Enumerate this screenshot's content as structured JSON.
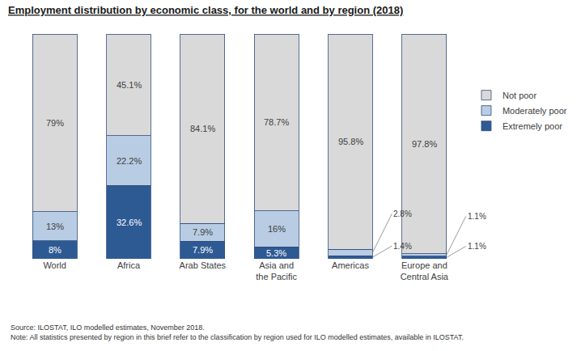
{
  "chart_data": {
    "type": "bar",
    "title": "Employment distribution by economic class, for the world and by region (2018)",
    "categories": [
      "World",
      "Africa",
      "Arab States",
      "Asia and the Pacific",
      "Americas",
      "Europe and Central Asia"
    ],
    "series": [
      {
        "name": "Extremely poor",
        "color": "#2e5a94",
        "values": [
          8,
          32.6,
          7.9,
          5.3,
          1.4,
          1.1
        ],
        "value_labels": [
          "8%",
          "32.6%",
          "7.9%",
          "5.3%",
          "1.4%",
          "1.1%"
        ]
      },
      {
        "name": "Moderately poor",
        "color": "#b8cce4",
        "values": [
          13,
          22.2,
          7.9,
          16,
          2.8,
          1.1
        ],
        "value_labels": [
          "13%",
          "22.2%",
          "7.9%",
          "16%",
          "2.8%",
          "1.1%"
        ]
      },
      {
        "name": "Not poor",
        "color": "#d9d9d9",
        "values": [
          79,
          45.1,
          84.1,
          78.7,
          95.8,
          97.8
        ],
        "value_labels": [
          "79%",
          "45.1%",
          "84.1%",
          "78.7%",
          "95.8%",
          "97.8%"
        ]
      }
    ],
    "stacked": true,
    "data_labels": true,
    "legend": "right",
    "tick_labels": "x",
    "grid": false,
    "ylim": [
      0,
      100
    ],
    "annotations": [
      "Source: ILOSTAT, ILO modelled estimates, November 2018.",
      "Note: All statistics presented by region in this brief refer to the classification by region used for ILO modelled estimates, available in ILOSTAT."
    ]
  }
}
